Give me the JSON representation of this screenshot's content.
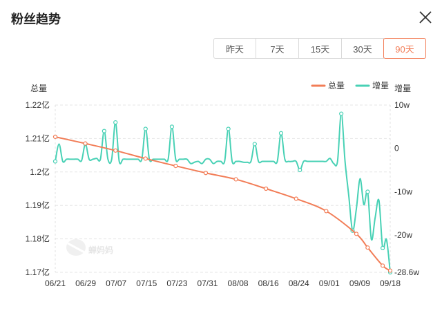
{
  "dialog": {
    "title": "粉丝趋势"
  },
  "tabs": [
    {
      "label": "昨天",
      "active": false
    },
    {
      "label": "7天",
      "active": false
    },
    {
      "label": "15天",
      "active": false
    },
    {
      "label": "30天",
      "active": false
    },
    {
      "label": "90天",
      "active": true
    }
  ],
  "watermark": "蝉妈妈",
  "colors": {
    "total": "#f27d57",
    "increase": "#48d1b5",
    "accent": "#f27d57"
  },
  "chart_data": {
    "type": "line",
    "x_ticks": [
      "06/21",
      "06/29",
      "07/07",
      "07/15",
      "07/23",
      "07/31",
      "08/08",
      "08/16",
      "08/24",
      "09/01",
      "09/09",
      "09/18"
    ],
    "left_axis": {
      "label": "总量",
      "ticks": [
        "1.22亿",
        "1.21亿",
        "1.2亿",
        "1.19亿",
        "1.18亿",
        "1.17亿"
      ],
      "ylim": [
        1.17,
        1.22
      ],
      "unit": "亿"
    },
    "right_axis": {
      "label": "增量",
      "ticks": [
        "10w",
        "0",
        "-10w",
        "-20w",
        "-28.6w"
      ],
      "ylim": [
        -28.6,
        10
      ],
      "unit": "w"
    },
    "legend": [
      "总量",
      "增量"
    ],
    "legend_position": "top-right",
    "grid": "dashed horizontal",
    "series": [
      {
        "name": "总量",
        "axis": "left",
        "day_index": [
          0,
          8,
          16,
          24,
          32,
          40,
          48,
          56,
          64,
          72,
          80,
          83,
          87,
          89
        ],
        "values": [
          1.2105,
          1.2085,
          1.2064,
          1.204,
          1.2018,
          1.1997,
          1.1978,
          1.195,
          1.192,
          1.1883,
          1.1815,
          1.1774,
          1.172,
          1.1705
        ]
      },
      {
        "name": "增量",
        "axis": "right",
        "day_index": [
          0,
          1,
          2,
          3,
          4,
          5,
          6,
          7,
          8,
          9,
          10,
          11,
          12,
          13,
          14,
          15,
          16,
          17,
          18,
          19,
          20,
          21,
          22,
          23,
          24,
          25,
          26,
          27,
          28,
          29,
          30,
          31,
          32,
          33,
          34,
          35,
          36,
          37,
          38,
          39,
          40,
          41,
          42,
          43,
          44,
          45,
          46,
          47,
          48,
          49,
          50,
          51,
          52,
          53,
          54,
          55,
          56,
          57,
          58,
          59,
          60,
          61,
          62,
          63,
          64,
          65,
          66,
          67,
          68,
          69,
          70,
          71,
          72,
          73,
          74,
          75,
          76,
          77,
          78,
          79,
          80,
          81,
          82,
          83,
          84,
          85,
          86,
          87,
          88,
          89
        ],
        "values": [
          -3,
          1,
          -3,
          -2.5,
          -2.5,
          -2.5,
          -2.5,
          -2.8,
          1,
          -2.5,
          -2.5,
          -2.3,
          -2.5,
          4,
          -2.5,
          -2.5,
          6,
          -3,
          -2.5,
          -2.5,
          -2.5,
          -2.5,
          -2.5,
          -2.5,
          4.5,
          -2.5,
          -2.5,
          -2.5,
          -2.5,
          -2.5,
          -2.5,
          5,
          -2.5,
          -2.5,
          -2.5,
          -2.5,
          -3.5,
          -3.2,
          -3,
          -3.5,
          -2.5,
          -2.5,
          -3.5,
          -3,
          -3,
          -3,
          4.5,
          -3,
          -3,
          -3,
          -3.2,
          -3.2,
          -3,
          1,
          -3,
          -3,
          -3,
          -3,
          -3,
          -3,
          3.5,
          -2.5,
          -3,
          -3,
          -3,
          -5,
          -3,
          -3,
          -3,
          -3,
          -3,
          -3,
          -3,
          -2.3,
          -3.5,
          -3,
          8,
          -3,
          -11,
          -19,
          -14,
          -7,
          -13,
          -10,
          -21,
          -16,
          -12,
          -23,
          -21,
          -28.6
        ]
      }
    ]
  }
}
